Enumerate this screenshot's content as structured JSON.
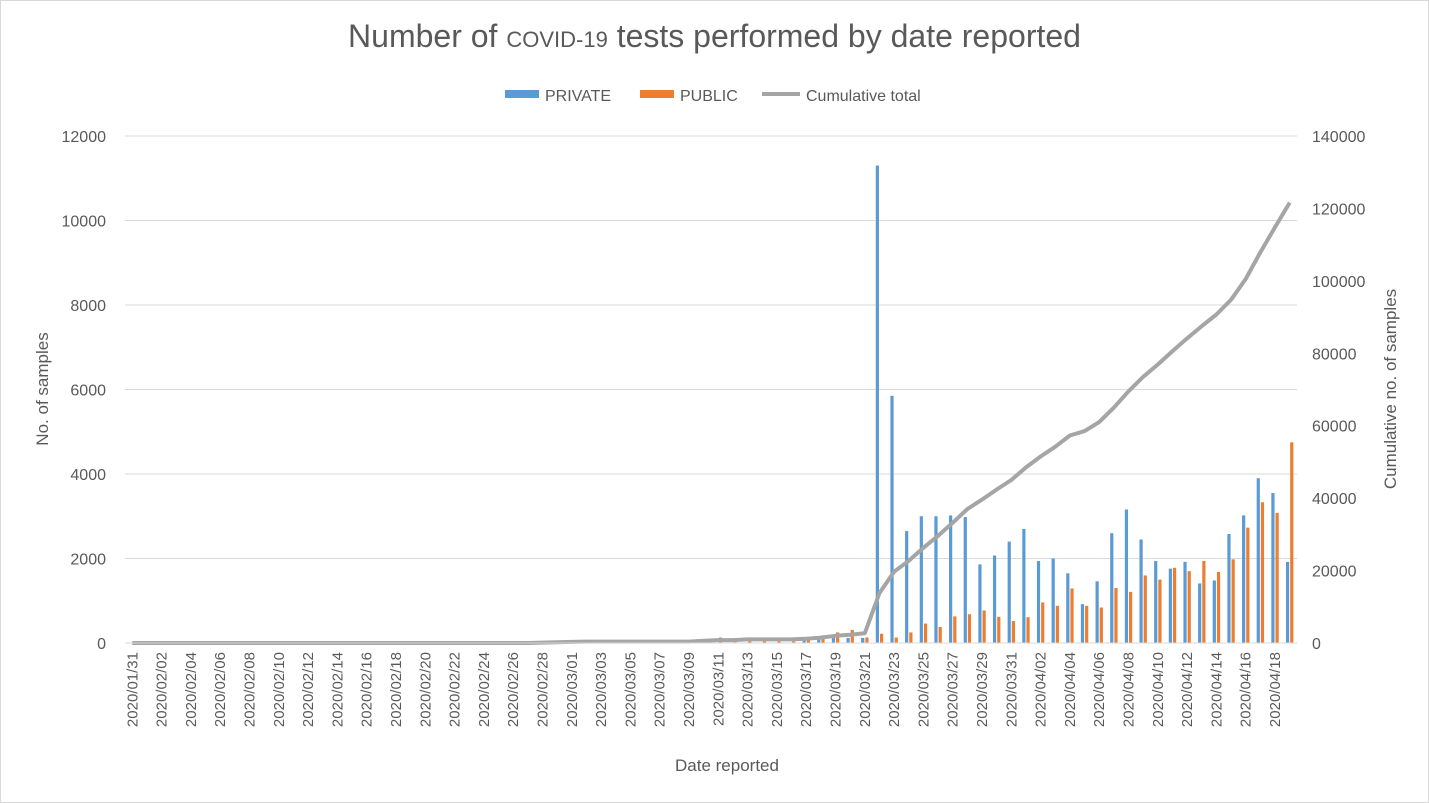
{
  "chart_data": {
    "type": "bar",
    "title_parts": [
      "Number of ",
      "COVID-19",
      " tests performed by date reported"
    ],
    "xlabel": "Date reported",
    "ylabel": "No. of samples",
    "y2label": "Cumulative no. of samples",
    "ylim": [
      0,
      12000
    ],
    "y2lim": [
      0,
      140000
    ],
    "yticks": [
      "0",
      "2000",
      "4000",
      "6000",
      "8000",
      "10000",
      "12000"
    ],
    "y2ticks": [
      "0",
      "20000",
      "40000",
      "60000",
      "80000",
      "100000",
      "120000",
      "140000"
    ],
    "grid": true,
    "legend_position": "top",
    "colors": {
      "private": "#5b9bd5",
      "public": "#ed7d31",
      "cumulative": "#a5a5a5"
    },
    "categories": [
      "2020/01/31",
      "2020/02/01",
      "2020/02/02",
      "2020/02/03",
      "2020/02/04",
      "2020/02/05",
      "2020/02/06",
      "2020/02/07",
      "2020/02/08",
      "2020/02/09",
      "2020/02/10",
      "2020/02/11",
      "2020/02/12",
      "2020/02/13",
      "2020/02/14",
      "2020/02/15",
      "2020/02/16",
      "2020/02/17",
      "2020/02/18",
      "2020/02/19",
      "2020/02/20",
      "2020/02/21",
      "2020/02/22",
      "2020/02/23",
      "2020/02/24",
      "2020/02/25",
      "2020/02/26",
      "2020/02/27",
      "2020/02/28",
      "2020/02/29",
      "2020/03/01",
      "2020/03/02",
      "2020/03/03",
      "2020/03/04",
      "2020/03/05",
      "2020/03/06",
      "2020/03/07",
      "2020/03/08",
      "2020/03/09",
      "2020/03/10",
      "2020/03/11",
      "2020/03/12",
      "2020/03/13",
      "2020/03/14",
      "2020/03/15",
      "2020/03/16",
      "2020/03/17",
      "2020/03/18",
      "2020/03/19",
      "2020/03/20",
      "2020/03/21",
      "2020/03/22",
      "2020/03/23",
      "2020/03/24",
      "2020/03/25",
      "2020/03/26",
      "2020/03/27",
      "2020/03/28",
      "2020/03/29",
      "2020/03/30",
      "2020/03/31",
      "2020/04/01",
      "2020/04/02",
      "2020/04/03",
      "2020/04/04",
      "2020/04/05",
      "2020/04/06",
      "2020/04/07",
      "2020/04/08",
      "2020/04/09",
      "2020/04/10",
      "2020/04/11",
      "2020/04/12",
      "2020/04/13",
      "2020/04/14",
      "2020/04/15",
      "2020/04/16",
      "2020/04/17",
      "2020/04/18",
      "2020/04/19"
    ],
    "series": [
      {
        "name": "PRIVATE",
        "values": [
          0,
          0,
          0,
          0,
          0,
          0,
          0,
          0,
          0,
          0,
          0,
          0,
          0,
          0,
          0,
          0,
          0,
          0,
          0,
          0,
          0,
          0,
          0,
          0,
          0,
          0,
          0,
          0,
          0,
          0,
          0,
          0,
          0,
          0,
          0,
          0,
          0,
          0,
          0,
          0,
          0,
          0,
          0,
          0,
          0,
          0,
          60,
          120,
          200,
          120,
          120,
          11300,
          5850,
          2650,
          3000,
          3000,
          3020,
          2980,
          1860,
          2070,
          2400,
          2700,
          1940,
          2000,
          1650,
          920,
          1460,
          2600,
          3160,
          2450,
          1940,
          1760,
          1920,
          1410,
          1480,
          2580,
          3020,
          3900,
          3550,
          1920
        ]
      },
      {
        "name": "PUBLIC",
        "values": [
          0,
          0,
          0,
          0,
          0,
          0,
          0,
          0,
          0,
          0,
          0,
          0,
          0,
          0,
          0,
          0,
          0,
          0,
          0,
          0,
          0,
          0,
          0,
          0,
          0,
          0,
          0,
          0,
          0,
          0,
          0,
          0,
          0,
          0,
          0,
          0,
          0,
          0,
          0,
          0,
          130,
          20,
          40,
          40,
          40,
          40,
          120,
          180,
          250,
          310,
          130,
          220,
          130,
          250,
          460,
          380,
          630,
          680,
          770,
          620,
          520,
          610,
          960,
          880,
          1290,
          880,
          840,
          1300,
          1210,
          1600,
          1500,
          1780,
          1700,
          1940,
          1680,
          1980,
          2730,
          3330,
          3080,
          4750
        ]
      },
      {
        "name": "Cumulative total",
        "values": [
          0,
          0,
          0,
          0,
          0,
          0,
          0,
          0,
          0,
          0,
          0,
          0,
          0,
          0,
          0,
          0,
          0,
          0,
          0,
          0,
          0,
          0,
          0,
          0,
          0,
          0,
          0,
          0,
          100,
          200,
          300,
          400,
          400,
          400,
          400,
          400,
          400,
          400,
          400,
          600,
          800,
          800,
          1000,
          1000,
          1000,
          1000,
          1200,
          1500,
          2000,
          2300,
          2700,
          13800,
          19700,
          22700,
          26300,
          29600,
          33200,
          37000,
          39600,
          42400,
          45000,
          48500,
          51500,
          54200,
          57300,
          58500,
          61000,
          65000,
          69500,
          73500,
          76900,
          80600,
          84100,
          87500,
          90700,
          94800,
          100500,
          107900,
          114800,
          121600
        ]
      }
    ],
    "visible_xticks": [
      "2020/01/31",
      "2020/02/02",
      "2020/02/04",
      "2020/02/06",
      "2020/02/08",
      "2020/02/10",
      "2020/02/12",
      "2020/02/14",
      "2020/02/16",
      "2020/02/18",
      "2020/02/20",
      "2020/02/22",
      "2020/02/24",
      "2020/02/26",
      "2020/02/28",
      "2020/03/01",
      "2020/03/03",
      "2020/03/05",
      "2020/03/07",
      "2020/03/09",
      "2020/03/11",
      "2020/03/13",
      "2020/03/15",
      "2020/03/17",
      "2020/03/19",
      "2020/03/21",
      "2020/03/23",
      "2020/03/25",
      "2020/03/27",
      "2020/03/29",
      "2020/03/31",
      "2020/04/02",
      "2020/04/04",
      "2020/04/06",
      "2020/04/08",
      "2020/04/10",
      "2020/04/12",
      "2020/04/14",
      "2020/04/16",
      "2020/04/18"
    ]
  }
}
